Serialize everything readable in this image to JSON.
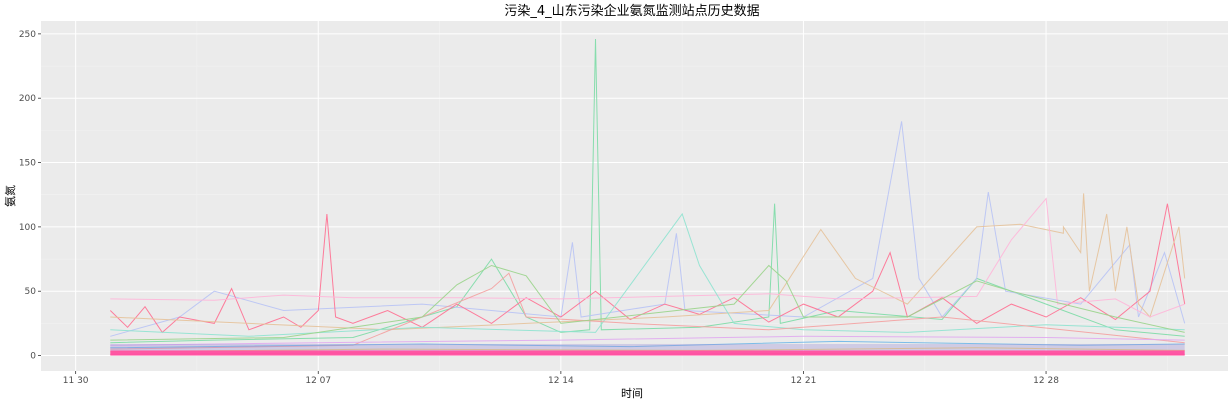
{
  "chart_data": {
    "type": "line",
    "title": "污染_4_山东污染企业氨氮监测站点历史数据",
    "xlabel": "时间",
    "ylabel": "氨氮",
    "x_ticks": [
      "11 30",
      "12 07",
      "12 14",
      "12 21",
      "12 28"
    ],
    "x_tick_dates": [
      "2019-11-30",
      "2019-12-07",
      "2019-12-14",
      "2019-12-21",
      "2019-12-28"
    ],
    "x_range": [
      "2019-11-29T00:00",
      "2020-01-02T06:00"
    ],
    "y_ticks": [
      0,
      50,
      100,
      150,
      200,
      250
    ],
    "ylim": [
      -12,
      260
    ],
    "data_start": "2019-12-01T00:00",
    "data_end": "2020-01-01T00:00",
    "grid": true,
    "legend": "none",
    "background": "#ebebeb",
    "series": [
      {
        "color": "#7CDBA6",
        "points": [
          [
            "2019-12-01",
            10
          ],
          [
            "2019-12-04",
            12
          ],
          [
            "2019-12-08",
            14
          ],
          [
            "2019-12-11",
            38
          ],
          [
            "2019-12-12",
            75
          ],
          [
            "2019-12-13",
            30
          ],
          [
            "2019-12-14",
            18
          ],
          [
            "2019-12-14T20:00",
            20
          ],
          [
            "2019-12-15T00:00",
            246
          ],
          [
            "2019-12-15T04:00",
            20
          ],
          [
            "2019-12-18",
            22
          ],
          [
            "2019-12-20",
            30
          ],
          [
            "2019-12-20T04:00",
            118
          ],
          [
            "2019-12-20T08:00",
            25
          ],
          [
            "2019-12-22",
            35
          ],
          [
            "2019-12-25",
            28
          ],
          [
            "2019-12-26",
            60
          ],
          [
            "2019-12-28",
            40
          ],
          [
            "2019-12-30",
            20
          ],
          [
            "2020-01-01",
            15
          ]
        ]
      },
      {
        "color": "#B8C3F5",
        "points": [
          [
            "2019-12-01",
            15
          ],
          [
            "2019-12-03",
            30
          ],
          [
            "2019-12-04",
            50
          ],
          [
            "2019-12-06",
            35
          ],
          [
            "2019-12-10",
            40
          ],
          [
            "2019-12-14",
            30
          ],
          [
            "2019-12-14T08:00",
            88
          ],
          [
            "2019-12-14T14:00",
            30
          ],
          [
            "2019-12-17",
            40
          ],
          [
            "2019-12-17T08:00",
            95
          ],
          [
            "2019-12-17T14:00",
            35
          ],
          [
            "2019-12-21",
            30
          ],
          [
            "2019-12-23",
            60
          ],
          [
            "2019-12-23T20:00",
            182
          ],
          [
            "2019-12-24T08:00",
            60
          ],
          [
            "2019-12-25",
            30
          ],
          [
            "2019-12-26",
            60
          ],
          [
            "2019-12-26T08:00",
            127
          ],
          [
            "2019-12-26T20:00",
            50
          ],
          [
            "2019-12-29",
            40
          ],
          [
            "2019-12-30T10:00",
            86
          ],
          [
            "2019-12-30T16:00",
            30
          ],
          [
            "2019-12-31T10:00",
            80
          ],
          [
            "2020-01-01",
            25
          ]
        ]
      },
      {
        "color": "#FF6F91",
        "points": [
          [
            "2019-12-01",
            35
          ],
          [
            "2019-12-01T12:00",
            22
          ],
          [
            "2019-12-02",
            38
          ],
          [
            "2019-12-02T12:00",
            18
          ],
          [
            "2019-12-03",
            30
          ],
          [
            "2019-12-04",
            25
          ],
          [
            "2019-12-04T12:00",
            52
          ],
          [
            "2019-12-05",
            20
          ],
          [
            "2019-12-06",
            30
          ],
          [
            "2019-12-06T12:00",
            22
          ],
          [
            "2019-12-07T00:00",
            35
          ],
          [
            "2019-12-07T06:00",
            110
          ],
          [
            "2019-12-07T12:00",
            30
          ],
          [
            "2019-12-08",
            25
          ],
          [
            "2019-12-09",
            35
          ],
          [
            "2019-12-10",
            22
          ],
          [
            "2019-12-11",
            40
          ],
          [
            "2019-12-12",
            25
          ],
          [
            "2019-12-13",
            45
          ],
          [
            "2019-12-14",
            30
          ],
          [
            "2019-12-15",
            50
          ],
          [
            "2019-12-16",
            28
          ],
          [
            "2019-12-17",
            40
          ],
          [
            "2019-12-18",
            32
          ],
          [
            "2019-12-19",
            45
          ],
          [
            "2019-12-20",
            26
          ],
          [
            "2019-12-21",
            40
          ],
          [
            "2019-12-22",
            30
          ],
          [
            "2019-12-23",
            50
          ],
          [
            "2019-12-23T12:00",
            80
          ],
          [
            "2019-12-24",
            30
          ],
          [
            "2019-12-25",
            45
          ],
          [
            "2019-12-26",
            25
          ],
          [
            "2019-12-27",
            40
          ],
          [
            "2019-12-28",
            30
          ],
          [
            "2019-12-29",
            45
          ],
          [
            "2019-12-30",
            28
          ],
          [
            "2019-12-31",
            50
          ],
          [
            "2019-12-31T12:00",
            118
          ],
          [
            "2020-01-01",
            40
          ]
        ]
      },
      {
        "color": "#E5C29A",
        "points": [
          [
            "2019-12-01",
            30
          ],
          [
            "2019-12-05",
            25
          ],
          [
            "2019-12-09",
            20
          ],
          [
            "2019-12-13",
            25
          ],
          [
            "2019-12-17",
            30
          ],
          [
            "2019-12-20",
            35
          ],
          [
            "2019-12-21T12:00",
            98
          ],
          [
            "2019-12-22T12:00",
            60
          ],
          [
            "2019-12-24",
            40
          ],
          [
            "2019-12-26",
            100
          ],
          [
            "2019-12-27T06:00",
            102
          ],
          [
            "2019-12-28T12:00",
            95
          ],
          [
            "2019-12-28T12:00",
            100
          ],
          [
            "2019-12-29",
            80
          ],
          [
            "2019-12-29T02:00",
            126
          ],
          [
            "2019-12-29T06:00",
            50
          ],
          [
            "2019-12-29T18:00",
            110
          ],
          [
            "2019-12-30",
            50
          ],
          [
            "2019-12-30T08:00",
            100
          ],
          [
            "2019-12-30T16:00",
            40
          ],
          [
            "2019-12-31",
            30
          ],
          [
            "2019-12-31T20:00",
            100
          ],
          [
            "2020-01-01",
            60
          ]
        ]
      },
      {
        "color": "#FFB6D9",
        "points": [
          [
            "2019-12-01",
            44
          ],
          [
            "2019-12-04",
            43
          ],
          [
            "2019-12-06",
            47
          ],
          [
            "2019-12-08",
            45
          ],
          [
            "2019-12-11",
            45
          ],
          [
            "2019-12-14",
            44
          ],
          [
            "2019-12-17",
            46
          ],
          [
            "2019-12-20",
            48
          ],
          [
            "2019-12-22",
            44
          ],
          [
            "2019-12-24",
            45
          ],
          [
            "2019-12-26",
            46
          ],
          [
            "2019-12-27",
            90
          ],
          [
            "2019-12-28",
            122
          ],
          [
            "2019-12-28T08:00",
            40
          ],
          [
            "2019-12-30",
            44
          ],
          [
            "2019-12-31",
            30
          ],
          [
            "2020-01-01",
            40
          ]
        ]
      },
      {
        "color": "#8FE3D0",
        "points": [
          [
            "2019-12-01",
            20
          ],
          [
            "2019-12-05",
            15
          ],
          [
            "2019-12-10",
            22
          ],
          [
            "2019-12-15",
            18
          ],
          [
            "2019-12-17T12:00",
            110
          ],
          [
            "2019-12-18",
            70
          ],
          [
            "2019-12-19",
            25
          ],
          [
            "2019-12-21",
            20
          ],
          [
            "2019-12-24",
            18
          ],
          [
            "2019-12-28",
            24
          ],
          [
            "2020-01-01",
            20
          ]
        ]
      },
      {
        "color": "#F4A0A0",
        "points": [
          [
            "2019-12-01",
            5
          ],
          [
            "2019-12-08",
            8
          ],
          [
            "2019-12-12",
            52
          ],
          [
            "2019-12-12T12:00",
            64
          ],
          [
            "2019-12-13",
            30
          ],
          [
            "2019-12-16",
            25
          ],
          [
            "2019-12-20",
            20
          ],
          [
            "2019-12-25",
            30
          ],
          [
            "2020-01-01",
            10
          ]
        ]
      },
      {
        "color": "#9AD48B",
        "points": [
          [
            "2019-12-01",
            12
          ],
          [
            "2019-12-06",
            14
          ],
          [
            "2019-12-10",
            30
          ],
          [
            "2019-12-11",
            55
          ],
          [
            "2019-12-12",
            70
          ],
          [
            "2019-12-13",
            62
          ],
          [
            "2019-12-14",
            25
          ],
          [
            "2019-12-19",
            40
          ],
          [
            "2019-12-20",
            70
          ],
          [
            "2019-12-20T12:00",
            58
          ],
          [
            "2019-12-21",
            30
          ],
          [
            "2019-12-24",
            30
          ],
          [
            "2019-12-26",
            58
          ],
          [
            "2019-12-27",
            50
          ],
          [
            "2019-12-30",
            30
          ],
          [
            "2020-01-01",
            18
          ]
        ]
      },
      {
        "color": "#E0A8F0",
        "points": [
          [
            "2019-12-01",
            8
          ],
          [
            "2019-12-07",
            10
          ],
          [
            "2019-12-14",
            12
          ],
          [
            "2019-12-21",
            15
          ],
          [
            "2019-12-28",
            14
          ],
          [
            "2020-01-01",
            12
          ]
        ]
      },
      {
        "color": "#6FB7E8",
        "points": [
          [
            "2019-12-01",
            6
          ],
          [
            "2019-12-10",
            9
          ],
          [
            "2019-12-16",
            7
          ],
          [
            "2019-12-22",
            11
          ],
          [
            "2019-12-29",
            8
          ],
          [
            "2020-01-01",
            9
          ]
        ]
      },
      {
        "color": "#F7D06B",
        "points": [
          [
            "2019-12-01",
            3
          ],
          [
            "2019-12-09",
            5
          ],
          [
            "2019-12-18",
            4
          ],
          [
            "2019-12-26",
            6
          ],
          [
            "2020-01-01",
            4
          ]
        ]
      },
      {
        "color": "#FF5C8A",
        "points": [
          [
            "2019-12-01",
            1
          ],
          [
            "2019-12-08",
            2
          ],
          [
            "2019-12-16",
            1
          ],
          [
            "2019-12-24",
            2
          ],
          [
            "2020-01-01",
            1
          ]
        ]
      }
    ]
  }
}
